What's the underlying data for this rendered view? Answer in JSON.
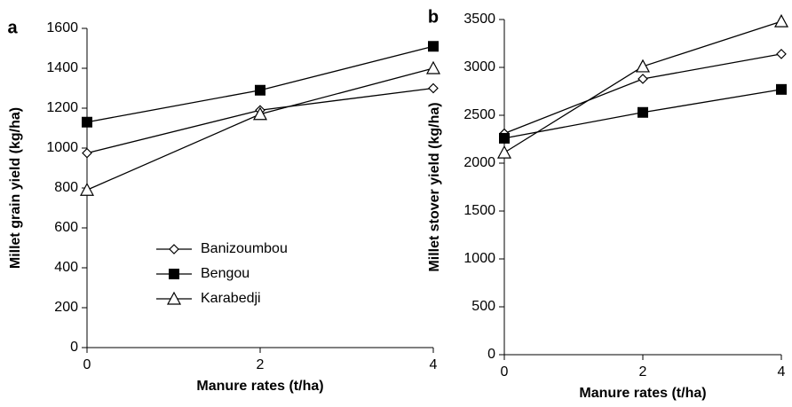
{
  "chart_data": [
    {
      "type": "line",
      "panel_label": "a",
      "xlabel": "Manure rates (t/ha)",
      "ylabel": "Millet grain yield (kg/ha)",
      "x": [
        0,
        2,
        4
      ],
      "xlim": [
        0,
        4
      ],
      "xticks": [
        0,
        2,
        4
      ],
      "ylim": [
        0,
        1600
      ],
      "yticks": [
        0,
        200,
        400,
        600,
        800,
        1000,
        1200,
        1400,
        1600
      ],
      "legend": "lower-left",
      "series": [
        {
          "name": "Banizoumbou",
          "color": "#000000",
          "marker": "diamond",
          "values": [
            975,
            1190,
            1300
          ]
        },
        {
          "name": "Bengou",
          "color": "#000000",
          "marker": "square",
          "values": [
            1130,
            1290,
            1510
          ]
        },
        {
          "name": "Karabedji",
          "color": "#000000",
          "marker": "triangle",
          "values": [
            790,
            1170,
            1400
          ]
        }
      ]
    },
    {
      "type": "line",
      "panel_label": "b",
      "xlabel": "Manure rates (t/ha)",
      "ylabel": "Millet stover yield (kg/ha)",
      "x": [
        0,
        2,
        4
      ],
      "xlim": [
        0,
        4
      ],
      "xticks": [
        0,
        2,
        4
      ],
      "ylim": [
        0,
        3500
      ],
      "yticks": [
        0,
        500,
        1000,
        1500,
        2000,
        2500,
        3000,
        3500
      ],
      "series": [
        {
          "color": "#000000",
          "marker": "diamond",
          "values": [
            2310,
            2880,
            3140
          ]
        },
        {
          "color": "#000000",
          "marker": "square",
          "values": [
            2260,
            2530,
            2770
          ]
        },
        {
          "color": "#000000",
          "marker": "triangle",
          "values": [
            2110,
            3010,
            3480
          ]
        }
      ]
    }
  ]
}
